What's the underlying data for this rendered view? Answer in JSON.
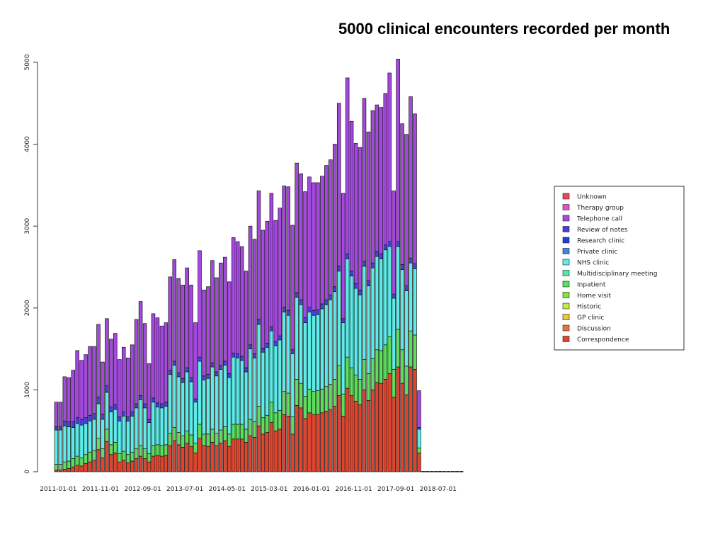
{
  "chart_data": {
    "type": "bar",
    "stacked": true,
    "title": "5000 clinical encounters recorded per month",
    "xlabel": "",
    "ylabel": "",
    "ylim": [
      0,
      5000
    ],
    "yticks": [
      0,
      1000,
      2000,
      3000,
      4000,
      5000
    ],
    "xtick_labels": [
      "2011-01-01",
      "2011-11-01",
      "2012-09-01",
      "2013-07-01",
      "2014-05-01",
      "2015-03-01",
      "2016-01-01",
      "2016-11-01",
      "2017-09-01",
      "2018-07-01"
    ],
    "xtick_every": 10,
    "start_month": "2011-01",
    "months": 97,
    "legend_position": "right",
    "series": [
      {
        "name": "Unknown",
        "color": "#E8475F"
      },
      {
        "name": "Therapy group",
        "color": "#E251C6"
      },
      {
        "name": "Telephone call",
        "color": "#A448E0"
      },
      {
        "name": "Review of notes",
        "color": "#4B3EE0"
      },
      {
        "name": "Research clinic",
        "color": "#2040D8"
      },
      {
        "name": "Private clinic",
        "color": "#3F85E6"
      },
      {
        "name": "NHS clinic",
        "color": "#5CEDEA"
      },
      {
        "name": "Multidisciplinary meeting",
        "color": "#55E8A8"
      },
      {
        "name": "Inpatient",
        "color": "#5DDF5D"
      },
      {
        "name": "Home visit",
        "color": "#7CE83E"
      },
      {
        "name": "Historic",
        "color": "#C6EB40"
      },
      {
        "name": "GP clinic",
        "color": "#EBC93A"
      },
      {
        "name": "Discussion",
        "color": "#E8753A"
      },
      {
        "name": "Correspondence",
        "color": "#E0442C"
      }
    ],
    "totals": [
      850,
      850,
      1160,
      1150,
      1240,
      1480,
      1360,
      1430,
      1530,
      1530,
      1800,
      1340,
      1870,
      1620,
      1690,
      1370,
      1520,
      1390,
      1550,
      1860,
      2080,
      1810,
      1320,
      1930,
      1880,
      1780,
      1820,
      2380,
      2590,
      2360,
      2280,
      2490,
      2280,
      1820,
      2700,
      2220,
      2260,
      2580,
      2370,
      2550,
      2620,
      2320,
      2860,
      2810,
      2750,
      2450,
      3000,
      2840,
      3430,
      2950,
      3060,
      3400,
      3070,
      3220,
      3490,
      3480,
      3010,
      3770,
      3640,
      3420,
      3600,
      3530,
      3530,
      3610,
      3740,
      3810,
      4000,
      4500,
      3400,
      4810,
      4280,
      4010,
      3960,
      4560,
      4150,
      4410,
      4480,
      4450,
      4620,
      4870,
      3430,
      5040,
      4250,
      4120,
      4580,
      4370,
      990,
      5,
      5,
      5,
      5,
      5,
      5,
      5,
      5,
      5,
      5
    ],
    "corr": [
      20,
      20,
      30,
      40,
      60,
      80,
      70,
      100,
      120,
      140,
      270,
      170,
      370,
      210,
      230,
      120,
      140,
      110,
      130,
      160,
      190,
      160,
      120,
      190,
      200,
      190,
      200,
      320,
      380,
      330,
      300,
      350,
      310,
      230,
      410,
      320,
      310,
      360,
      320,
      350,
      380,
      310,
      400,
      400,
      400,
      360,
      440,
      420,
      560,
      460,
      480,
      600,
      500,
      520,
      700,
      680,
      460,
      810,
      780,
      650,
      720,
      700,
      700,
      720,
      740,
      760,
      800,
      930,
      680,
      1020,
      930,
      860,
      820,
      1000,
      870,
      1000,
      1090,
      1080,
      1130,
      1200,
      910,
      1280,
      1080,
      940,
      1280,
      1250,
      230,
      0,
      0,
      0,
      0,
      0,
      0,
      0,
      0,
      0,
      0
    ],
    "green": [
      70,
      70,
      90,
      90,
      100,
      110,
      100,
      110,
      120,
      120,
      140,
      110,
      150,
      120,
      130,
      100,
      110,
      100,
      110,
      120,
      130,
      120,
      100,
      130,
      130,
      130,
      130,
      150,
      160,
      150,
      140,
      150,
      140,
      120,
      170,
      140,
      150,
      160,
      150,
      160,
      170,
      150,
      180,
      180,
      180,
      160,
      200,
      190,
      240,
      200,
      210,
      250,
      220,
      230,
      280,
      280,
      210,
      320,
      300,
      270,
      290,
      280,
      290,
      290,
      300,
      310,
      330,
      370,
      270,
      380,
      340,
      320,
      310,
      370,
      330,
      380,
      400,
      400,
      420,
      450,
      340,
      460,
      410,
      350,
      440,
      420,
      60,
      0,
      0,
      0,
      0,
      0,
      0,
      0,
      0,
      0,
      0
    ],
    "nhs": [
      420,
      420,
      440,
      420,
      380,
      400,
      400,
      380,
      380,
      380,
      420,
      360,
      450,
      400,
      400,
      400,
      430,
      410,
      440,
      500,
      560,
      500,
      380,
      530,
      460,
      460,
      470,
      720,
      760,
      680,
      650,
      720,
      650,
      500,
      770,
      660,
      680,
      760,
      700,
      740,
      750,
      690,
      820,
      810,
      780,
      700,
      860,
      780,
      1000,
      800,
      830,
      870,
      820,
      860,
      970,
      950,
      770,
      1000,
      960,
      900,
      940,
      930,
      930,
      980,
      1000,
      1030,
      1070,
      1150,
      870,
      1200,
      1120,
      1060,
      1030,
      1140,
      1070,
      1110,
      1140,
      1120,
      1160,
      1100,
      870,
      1010,
      980,
      920,
      830,
      810,
      230,
      0,
      0,
      0,
      0,
      0,
      0,
      0,
      0,
      0,
      0
    ],
    "blue": [
      40,
      40,
      60,
      60,
      70,
      70,
      70,
      70,
      70,
      70,
      80,
      60,
      80,
      60,
      60,
      50,
      50,
      50,
      50,
      50,
      50,
      50,
      40,
      50,
      50,
      50,
      50,
      50,
      50,
      50,
      50,
      50,
      50,
      40,
      50,
      50,
      50,
      50,
      50,
      50,
      50,
      50,
      50,
      50,
      50,
      50,
      50,
      50,
      60,
      50,
      50,
      50,
      50,
      50,
      60,
      60,
      50,
      60,
      60,
      60,
      60,
      60,
      60,
      60,
      60,
      60,
      60,
      60,
      50,
      60,
      60,
      60,
      60,
      60,
      60,
      60,
      60,
      60,
      60,
      60,
      50,
      60,
      60,
      60,
      60,
      60,
      20,
      0,
      0,
      0,
      0,
      0,
      0,
      0,
      0,
      0,
      0
    ],
    "pink": [
      0,
      0,
      0,
      0,
      0,
      0,
      0,
      0,
      0,
      0,
      0,
      0,
      0,
      0,
      0,
      0,
      0,
      0,
      0,
      0,
      0,
      0,
      0,
      0,
      0,
      0,
      0,
      0,
      0,
      0,
      0,
      0,
      0,
      0,
      0,
      0,
      0,
      0,
      0,
      0,
      0,
      0,
      0,
      0,
      0,
      0,
      0,
      0,
      0,
      0,
      0,
      0,
      0,
      0,
      0,
      0,
      0,
      0,
      0,
      0,
      0,
      0,
      0,
      0,
      0,
      0,
      0,
      0,
      0,
      0,
      0,
      0,
      0,
      0,
      0,
      0,
      0,
      0,
      0,
      0,
      0,
      0,
      0,
      0,
      0,
      0,
      0,
      0,
      0,
      0,
      0,
      0,
      0,
      0,
      0,
      0,
      0
    ]
  }
}
